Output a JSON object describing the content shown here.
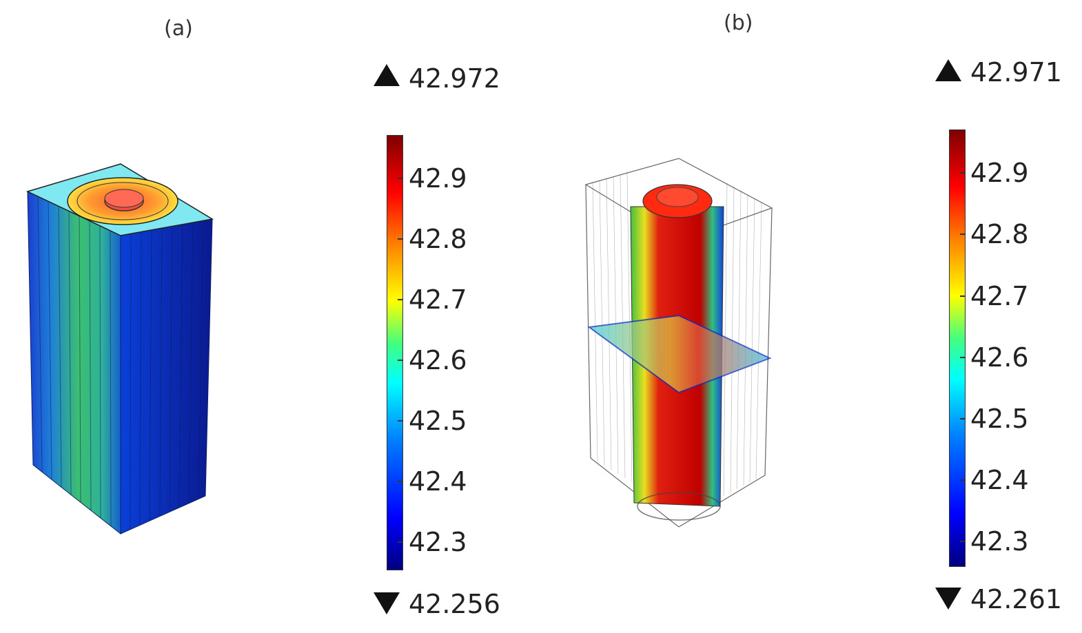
{
  "panels": [
    {
      "label": "(a)",
      "colorbar": {
        "max": "42.972",
        "min": "42.256",
        "ticks": [
          "42.9",
          "42.8",
          "42.7",
          "42.6",
          "42.5",
          "42.4",
          "42.3"
        ],
        "range": [
          42.256,
          42.972
        ]
      }
    },
    {
      "label": "(b)",
      "colorbar": {
        "max": "42.971",
        "min": "42.261",
        "ticks": [
          "42.9",
          "42.8",
          "42.7",
          "42.6",
          "42.5",
          "42.4",
          "42.3"
        ],
        "range": [
          42.261,
          42.971
        ]
      }
    }
  ],
  "colors": {
    "colormap": [
      "#00007f",
      "#0000ff",
      "#0080ff",
      "#00ffff",
      "#40ff80",
      "#ffff00",
      "#ff8000",
      "#ff0000",
      "#7f0000"
    ]
  }
}
